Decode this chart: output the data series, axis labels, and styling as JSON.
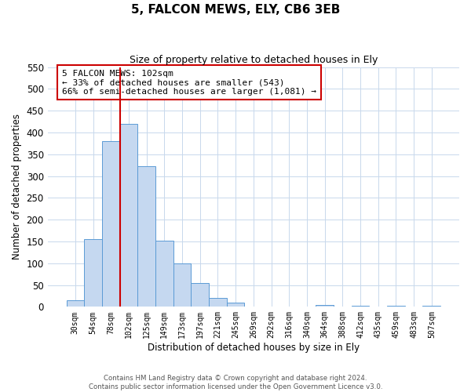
{
  "title": "5, FALCON MEWS, ELY, CB6 3EB",
  "subtitle": "Size of property relative to detached houses in Ely",
  "xlabel": "Distribution of detached houses by size in Ely",
  "ylabel": "Number of detached properties",
  "bar_labels": [
    "30sqm",
    "54sqm",
    "78sqm",
    "102sqm",
    "125sqm",
    "149sqm",
    "173sqm",
    "197sqm",
    "221sqm",
    "245sqm",
    "269sqm",
    "292sqm",
    "316sqm",
    "340sqm",
    "364sqm",
    "388sqm",
    "412sqm",
    "435sqm",
    "459sqm",
    "483sqm",
    "507sqm"
  ],
  "bar_values": [
    15,
    155,
    380,
    420,
    322,
    152,
    100,
    55,
    20,
    10,
    0,
    0,
    0,
    0,
    4,
    0,
    3,
    0,
    3,
    0,
    3
  ],
  "bar_color": "#c5d8f0",
  "bar_edge_color": "#5b9bd5",
  "vline_x_idx": 3,
  "vline_color": "#cc0000",
  "ylim": [
    0,
    550
  ],
  "yticks": [
    0,
    50,
    100,
    150,
    200,
    250,
    300,
    350,
    400,
    450,
    500,
    550
  ],
  "annotation_text": "5 FALCON MEWS: 102sqm\n← 33% of detached houses are smaller (543)\n66% of semi-detached houses are larger (1,081) →",
  "footer_line1": "Contains HM Land Registry data © Crown copyright and database right 2024.",
  "footer_line2": "Contains public sector information licensed under the Open Government Licence v3.0.",
  "bg_color": "#ffffff",
  "grid_color": "#c8d8ec"
}
